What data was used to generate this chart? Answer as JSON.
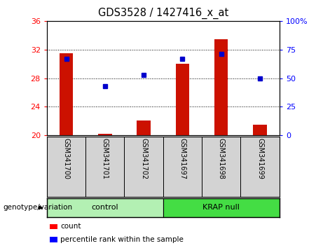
{
  "title": "GDS3528 / 1427416_x_at",
  "samples": [
    "GSM341700",
    "GSM341701",
    "GSM341702",
    "GSM341697",
    "GSM341698",
    "GSM341699"
  ],
  "counts": [
    31.5,
    20.2,
    22.1,
    30.0,
    33.5,
    21.5
  ],
  "percentiles": [
    67,
    43,
    53,
    67,
    71,
    50
  ],
  "ylim_left": [
    20,
    36
  ],
  "ylim_right": [
    0,
    100
  ],
  "yticks_left": [
    20,
    24,
    28,
    32,
    36
  ],
  "yticks_right": [
    0,
    25,
    50,
    75,
    100
  ],
  "group_control_color": "#b3f0b3",
  "group_krap_color": "#44dd44",
  "bar_color": "#cc1100",
  "marker_color": "#0000cc",
  "bar_width": 0.35,
  "genotype_label": "genotype/variation",
  "legend_count_label": "count",
  "legend_pct_label": "percentile rank within the sample",
  "control_label": "control",
  "krap_label": "KRAP null"
}
